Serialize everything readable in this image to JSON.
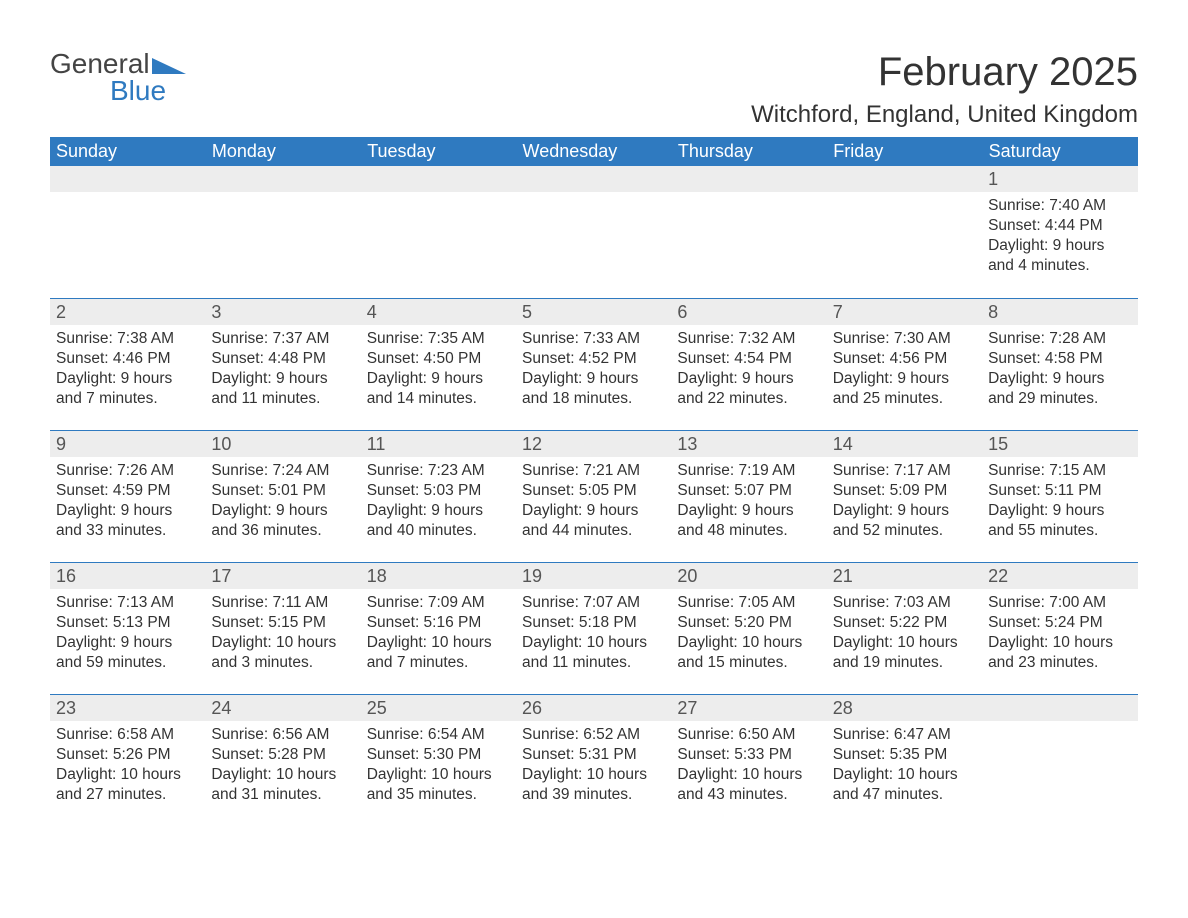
{
  "logo": {
    "general": "General",
    "blue": "Blue"
  },
  "title": "February 2025",
  "location": "Witchford, England, United Kingdom",
  "colors": {
    "header_bg": "#2f7ac0",
    "header_text": "#ffffff",
    "daynum_bg": "#ededed",
    "text": "#333333",
    "logo_blue": "#2f7ac0",
    "logo_gray": "#444444",
    "row_sep": "#2f7ac0",
    "background": "#ffffff"
  },
  "typography": {
    "title_fontsize": 40,
    "location_fontsize": 24,
    "weekday_fontsize": 18,
    "daynum_fontsize": 18,
    "body_fontsize": 15.5
  },
  "weekdays": [
    "Sunday",
    "Monday",
    "Tuesday",
    "Wednesday",
    "Thursday",
    "Friday",
    "Saturday"
  ],
  "weeks": [
    [
      {
        "blank": true
      },
      {
        "blank": true
      },
      {
        "blank": true
      },
      {
        "blank": true
      },
      {
        "blank": true
      },
      {
        "blank": true
      },
      {
        "day": "1",
        "sunrise": "Sunrise: 7:40 AM",
        "sunset": "Sunset: 4:44 PM",
        "daylight": "Daylight: 9 hours and 4 minutes."
      }
    ],
    [
      {
        "day": "2",
        "sunrise": "Sunrise: 7:38 AM",
        "sunset": "Sunset: 4:46 PM",
        "daylight": "Daylight: 9 hours and 7 minutes."
      },
      {
        "day": "3",
        "sunrise": "Sunrise: 7:37 AM",
        "sunset": "Sunset: 4:48 PM",
        "daylight": "Daylight: 9 hours and 11 minutes."
      },
      {
        "day": "4",
        "sunrise": "Sunrise: 7:35 AM",
        "sunset": "Sunset: 4:50 PM",
        "daylight": "Daylight: 9 hours and 14 minutes."
      },
      {
        "day": "5",
        "sunrise": "Sunrise: 7:33 AM",
        "sunset": "Sunset: 4:52 PM",
        "daylight": "Daylight: 9 hours and 18 minutes."
      },
      {
        "day": "6",
        "sunrise": "Sunrise: 7:32 AM",
        "sunset": "Sunset: 4:54 PM",
        "daylight": "Daylight: 9 hours and 22 minutes."
      },
      {
        "day": "7",
        "sunrise": "Sunrise: 7:30 AM",
        "sunset": "Sunset: 4:56 PM",
        "daylight": "Daylight: 9 hours and 25 minutes."
      },
      {
        "day": "8",
        "sunrise": "Sunrise: 7:28 AM",
        "sunset": "Sunset: 4:58 PM",
        "daylight": "Daylight: 9 hours and 29 minutes."
      }
    ],
    [
      {
        "day": "9",
        "sunrise": "Sunrise: 7:26 AM",
        "sunset": "Sunset: 4:59 PM",
        "daylight": "Daylight: 9 hours and 33 minutes."
      },
      {
        "day": "10",
        "sunrise": "Sunrise: 7:24 AM",
        "sunset": "Sunset: 5:01 PM",
        "daylight": "Daylight: 9 hours and 36 minutes."
      },
      {
        "day": "11",
        "sunrise": "Sunrise: 7:23 AM",
        "sunset": "Sunset: 5:03 PM",
        "daylight": "Daylight: 9 hours and 40 minutes."
      },
      {
        "day": "12",
        "sunrise": "Sunrise: 7:21 AM",
        "sunset": "Sunset: 5:05 PM",
        "daylight": "Daylight: 9 hours and 44 minutes."
      },
      {
        "day": "13",
        "sunrise": "Sunrise: 7:19 AM",
        "sunset": "Sunset: 5:07 PM",
        "daylight": "Daylight: 9 hours and 48 minutes."
      },
      {
        "day": "14",
        "sunrise": "Sunrise: 7:17 AM",
        "sunset": "Sunset: 5:09 PM",
        "daylight": "Daylight: 9 hours and 52 minutes."
      },
      {
        "day": "15",
        "sunrise": "Sunrise: 7:15 AM",
        "sunset": "Sunset: 5:11 PM",
        "daylight": "Daylight: 9 hours and 55 minutes."
      }
    ],
    [
      {
        "day": "16",
        "sunrise": "Sunrise: 7:13 AM",
        "sunset": "Sunset: 5:13 PM",
        "daylight": "Daylight: 9 hours and 59 minutes."
      },
      {
        "day": "17",
        "sunrise": "Sunrise: 7:11 AM",
        "sunset": "Sunset: 5:15 PM",
        "daylight": "Daylight: 10 hours and 3 minutes."
      },
      {
        "day": "18",
        "sunrise": "Sunrise: 7:09 AM",
        "sunset": "Sunset: 5:16 PM",
        "daylight": "Daylight: 10 hours and 7 minutes."
      },
      {
        "day": "19",
        "sunrise": "Sunrise: 7:07 AM",
        "sunset": "Sunset: 5:18 PM",
        "daylight": "Daylight: 10 hours and 11 minutes."
      },
      {
        "day": "20",
        "sunrise": "Sunrise: 7:05 AM",
        "sunset": "Sunset: 5:20 PM",
        "daylight": "Daylight: 10 hours and 15 minutes."
      },
      {
        "day": "21",
        "sunrise": "Sunrise: 7:03 AM",
        "sunset": "Sunset: 5:22 PM",
        "daylight": "Daylight: 10 hours and 19 minutes."
      },
      {
        "day": "22",
        "sunrise": "Sunrise: 7:00 AM",
        "sunset": "Sunset: 5:24 PM",
        "daylight": "Daylight: 10 hours and 23 minutes."
      }
    ],
    [
      {
        "day": "23",
        "sunrise": "Sunrise: 6:58 AM",
        "sunset": "Sunset: 5:26 PM",
        "daylight": "Daylight: 10 hours and 27 minutes."
      },
      {
        "day": "24",
        "sunrise": "Sunrise: 6:56 AM",
        "sunset": "Sunset: 5:28 PM",
        "daylight": "Daylight: 10 hours and 31 minutes."
      },
      {
        "day": "25",
        "sunrise": "Sunrise: 6:54 AM",
        "sunset": "Sunset: 5:30 PM",
        "daylight": "Daylight: 10 hours and 35 minutes."
      },
      {
        "day": "26",
        "sunrise": "Sunrise: 6:52 AM",
        "sunset": "Sunset: 5:31 PM",
        "daylight": "Daylight: 10 hours and 39 minutes."
      },
      {
        "day": "27",
        "sunrise": "Sunrise: 6:50 AM",
        "sunset": "Sunset: 5:33 PM",
        "daylight": "Daylight: 10 hours and 43 minutes."
      },
      {
        "day": "28",
        "sunrise": "Sunrise: 6:47 AM",
        "sunset": "Sunset: 5:35 PM",
        "daylight": "Daylight: 10 hours and 47 minutes."
      },
      {
        "blank": true
      }
    ]
  ]
}
